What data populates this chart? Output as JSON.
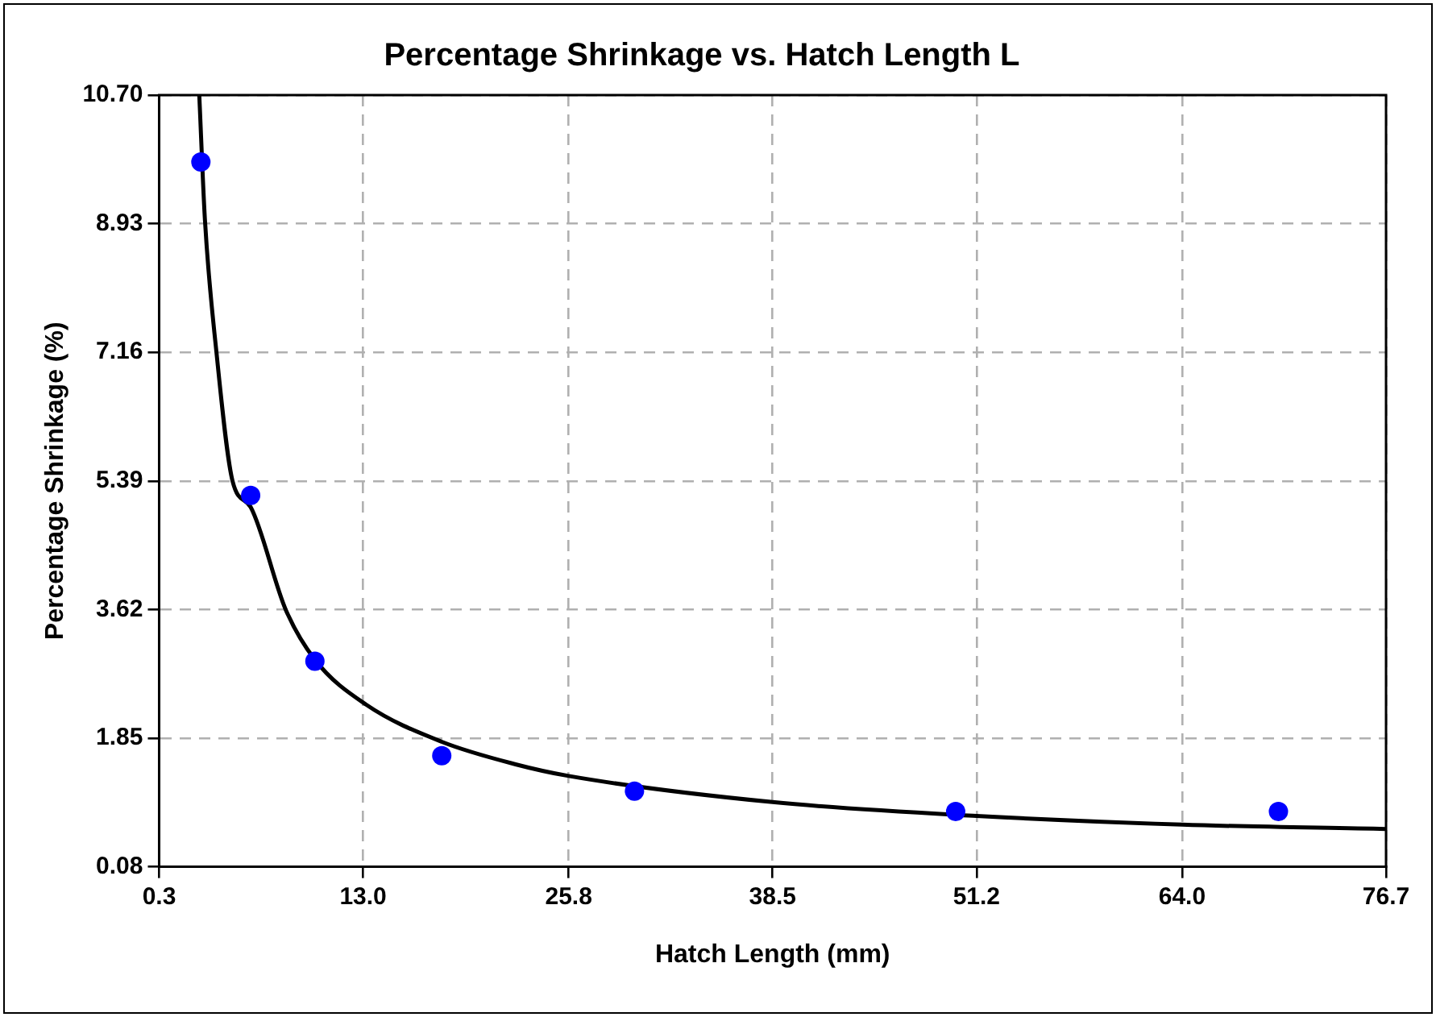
{
  "chart_data": {
    "type": "scatter",
    "title": "Percentage Shrinkage vs. Hatch Length L",
    "xlabel": "Hatch Length (mm)",
    "ylabel": "Percentage Shrinkage (%)",
    "xlim": [
      0.3,
      76.7
    ],
    "xticks": [
      0.3,
      {
        "value": 13,
        "label": "13.0"
      },
      25.8,
      38.5,
      51.2,
      {
        "value": 64,
        "label": "64.0"
      },
      76.7
    ],
    "ylim": [
      0.08,
      10.7
    ],
    "yticks": [
      0.08,
      1.85,
      3.62,
      5.39,
      7.16,
      8.93,
      {
        "value": 10.7,
        "label": "10.70"
      }
    ],
    "grid": true,
    "legend": false,
    "series": [
      {
        "type": "scatter",
        "color": "#0000ff",
        "marker": "circle",
        "x": [
          2.9,
          6.0,
          10.0,
          17.9,
          29.9,
          49.9,
          70.0
        ],
        "values": [
          9.78,
          5.19,
          2.91,
          1.61,
          1.12,
          0.84,
          0.84
        ]
      },
      {
        "type": "line",
        "color": "#000000",
        "marker": "none",
        "line_style": "solid",
        "x": [
          2.8,
          3.15,
          3.87,
          4.87,
          6.0,
          8.18,
          10.0,
          13.2,
          17.9,
          22.5,
          25.8,
          38.5,
          51.2,
          64.0,
          76.7
        ],
        "values": [
          10.7,
          8.99,
          7.16,
          5.39,
          5.03,
          3.62,
          2.93,
          2.31,
          1.8,
          1.49,
          1.33,
          0.97,
          0.78,
          0.66,
          0.6
        ]
      }
    ]
  }
}
